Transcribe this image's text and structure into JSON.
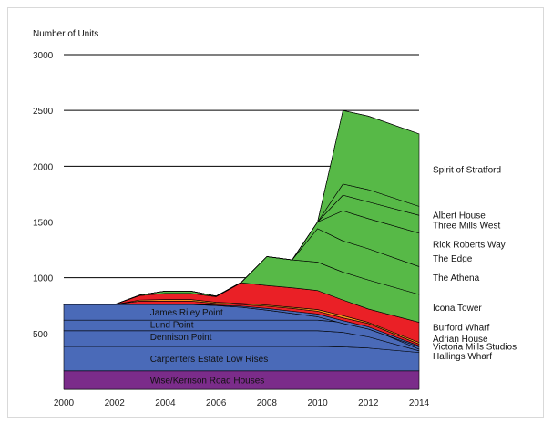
{
  "chart_data": {
    "type": "area",
    "stacked": true,
    "title": "",
    "ylabel": "Number of Units",
    "xlabel": "",
    "x": [
      2000,
      2002,
      2003,
      2004,
      2005,
      2006,
      2007,
      2008,
      2009,
      2010,
      2011,
      2012,
      2014
    ],
    "xticks": [
      2000,
      2002,
      2004,
      2006,
      2008,
      2010,
      2012,
      2014
    ],
    "yticks": [
      500,
      1000,
      1500,
      2000,
      2500,
      3000
    ],
    "xlim": [
      2000,
      2014
    ],
    "ylim": [
      0,
      3000
    ],
    "gridlines": "horizontal",
    "colors": {
      "wise": "#7b2c8a",
      "blue": "#4a6ab8",
      "red": "#ea2026",
      "orange": "#f7941d",
      "green": "#57b947",
      "outline": "#000000"
    },
    "bands": [
      {
        "name": "Wise/Kerrison Road Houses",
        "color": "purple",
        "top": [
          165,
          165,
          165,
          165,
          165,
          165,
          165,
          165,
          165,
          165,
          165,
          165,
          165
        ]
      },
      {
        "name": "Carpenters Estate Low Rises",
        "color": "blue",
        "top": [
          385,
          385,
          385,
          385,
          385,
          385,
          385,
          385,
          385,
          385,
          380,
          370,
          330
        ]
      },
      {
        "name": "Dennison Point",
        "color": "blue",
        "top": [
          525,
          525,
          525,
          525,
          525,
          525,
          525,
          525,
          525,
          525,
          510,
          470,
          345
        ]
      },
      {
        "name": "Lund Point",
        "color": "blue",
        "top": [
          620,
          620,
          620,
          620,
          620,
          620,
          620,
          620,
          620,
          620,
          600,
          550,
          360
        ]
      },
      {
        "name": "James Riley Point",
        "color": "blue",
        "top": [
          760,
          760,
          760,
          760,
          760,
          750,
          735,
          710,
          680,
          650,
          590,
          540,
          380
        ]
      },
      {
        "name": "Hallings Wharf",
        "color": "blue",
        "top": [
          760,
          760,
          765,
          765,
          765,
          755,
          745,
          725,
          700,
          675,
          615,
          560,
          390
        ]
      },
      {
        "name": "Victoria Mills Studios",
        "color": "red",
        "top": [
          760,
          760,
          790,
          790,
          790,
          770,
          760,
          745,
          725,
          700,
          640,
          590,
          405
        ]
      },
      {
        "name": "Adrian House",
        "color": "orange",
        "top": [
          760,
          760,
          800,
          805,
          805,
          780,
          770,
          755,
          735,
          715,
          660,
          600,
          420
        ]
      },
      {
        "name": "Burford Wharf",
        "color": "red",
        "top": [
          760,
          760,
          840,
          860,
          860,
          830,
          955,
          930,
          910,
          885,
          800,
          720,
          600
        ]
      },
      {
        "name": "Icona Tower",
        "color": "green",
        "top": [
          760,
          760,
          845,
          880,
          880,
          835,
          960,
          1190,
          1160,
          1140,
          1050,
          980,
          850
        ]
      },
      {
        "name": "The Athena",
        "color": "green",
        "top": [
          760,
          760,
          845,
          880,
          880,
          835,
          960,
          1190,
          1160,
          1440,
          1330,
          1260,
          1100
        ]
      },
      {
        "name": "The Edge",
        "color": "green",
        "top": [
          760,
          760,
          845,
          880,
          880,
          835,
          960,
          1190,
          1160,
          1500,
          1600,
          1530,
          1400
        ]
      },
      {
        "name": "Rick Roberts Way",
        "color": "green",
        "top": [
          760,
          760,
          845,
          880,
          880,
          835,
          960,
          1190,
          1160,
          1500,
          1740,
          1680,
          1560
        ]
      },
      {
        "name": "Three Mills West",
        "color": "green",
        "top": [
          760,
          760,
          845,
          880,
          880,
          835,
          960,
          1190,
          1160,
          1500,
          1840,
          1790,
          1640
        ]
      },
      {
        "name": "Albert House",
        "color": "green",
        "top": [
          760,
          760,
          845,
          880,
          880,
          835,
          960,
          1190,
          1160,
          1500,
          2500,
          2450,
          2290
        ]
      },
      {
        "name": "Spirit of Stratford",
        "color": "green",
        "top": [
          760,
          760,
          845,
          880,
          880,
          835,
          960,
          1190,
          1160,
          1500,
          2500,
          2450,
          2290
        ]
      }
    ],
    "inline_labels": [
      {
        "text": "James Riley Point",
        "x": 2003.4,
        "y": 690
      },
      {
        "text": "Lund Point",
        "x": 2003.4,
        "y": 580
      },
      {
        "text": "Dennison Point",
        "x": 2003.4,
        "y": 470
      },
      {
        "text": "Carpenters Estate Low Rises",
        "x": 2003.4,
        "y": 275
      },
      {
        "text": "Wise/Kerrison Road Houses",
        "x": 2003.4,
        "y": 82
      }
    ],
    "right_labels": [
      {
        "text": "Spirit of Stratford",
        "y": 1970
      },
      {
        "text": "Albert House",
        "y": 1560
      },
      {
        "text": "Three Mills West",
        "y": 1470
      },
      {
        "text": "Rick Roberts Way",
        "y": 1300
      },
      {
        "text": "The Edge",
        "y": 1175
      },
      {
        "text": "The Athena",
        "y": 1000
      },
      {
        "text": "Icona Tower",
        "y": 730
      },
      {
        "text": "Burford Wharf",
        "y": 555
      },
      {
        "text": "Adrian House",
        "y": 455
      },
      {
        "text": "Victoria Mills Studios",
        "y": 385
      },
      {
        "text": "Hallings Wharf",
        "y": 300
      }
    ]
  }
}
